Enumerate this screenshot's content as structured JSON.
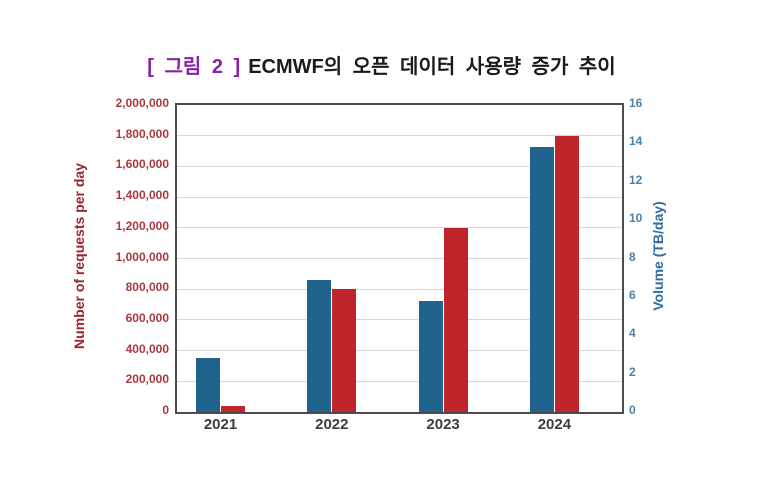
{
  "figure": {
    "label": "[ 그림 2 ]",
    "title": "ECMWF의 오픈 데이터 사용량 증가 추이",
    "label_color": "#8a22a8"
  },
  "chart_data": {
    "type": "bar",
    "title": "[ 그림 2 ] ECMWF의 오픈 데이터 사용량 증가 추이",
    "categories": [
      "2021",
      "2022",
      "2023",
      "2024"
    ],
    "series": [
      {
        "name": "Volume (TB/day)",
        "axis": "right",
        "color": "#20638e",
        "values": [
          2.8,
          6.9,
          5.8,
          13.8
        ]
      },
      {
        "name": "Number of requests per day",
        "axis": "left",
        "color": "#bf262b",
        "values": [
          40000,
          800000,
          1200000,
          1800000
        ]
      }
    ],
    "left_axis": {
      "label": "Number of requests per day",
      "range": [
        0,
        2000000
      ],
      "tick_step": 200000,
      "tick_labels": [
        "2,000,000",
        "1,800,000",
        "1,600,000",
        "1,400,000",
        "1,200,000",
        "1,000,000",
        "800,000",
        "600,000",
        "400,000",
        "200,000",
        "0"
      ],
      "label_color": "#9c2430",
      "tick_color": "#a8383e"
    },
    "right_axis": {
      "label": "Volume (TB/day)",
      "range": [
        0,
        16
      ],
      "tick_step": 2,
      "tick_labels": [
        "16",
        "14",
        "12",
        "10",
        "8",
        "6",
        "4",
        "2",
        "0"
      ],
      "label_color": "#2e6da4",
      "tick_color": "#4b80a8"
    },
    "grid": "horizontal",
    "legend": "none",
    "plot_border_color": "#4d4d4d",
    "gridline_color": "#d9d9d9"
  }
}
